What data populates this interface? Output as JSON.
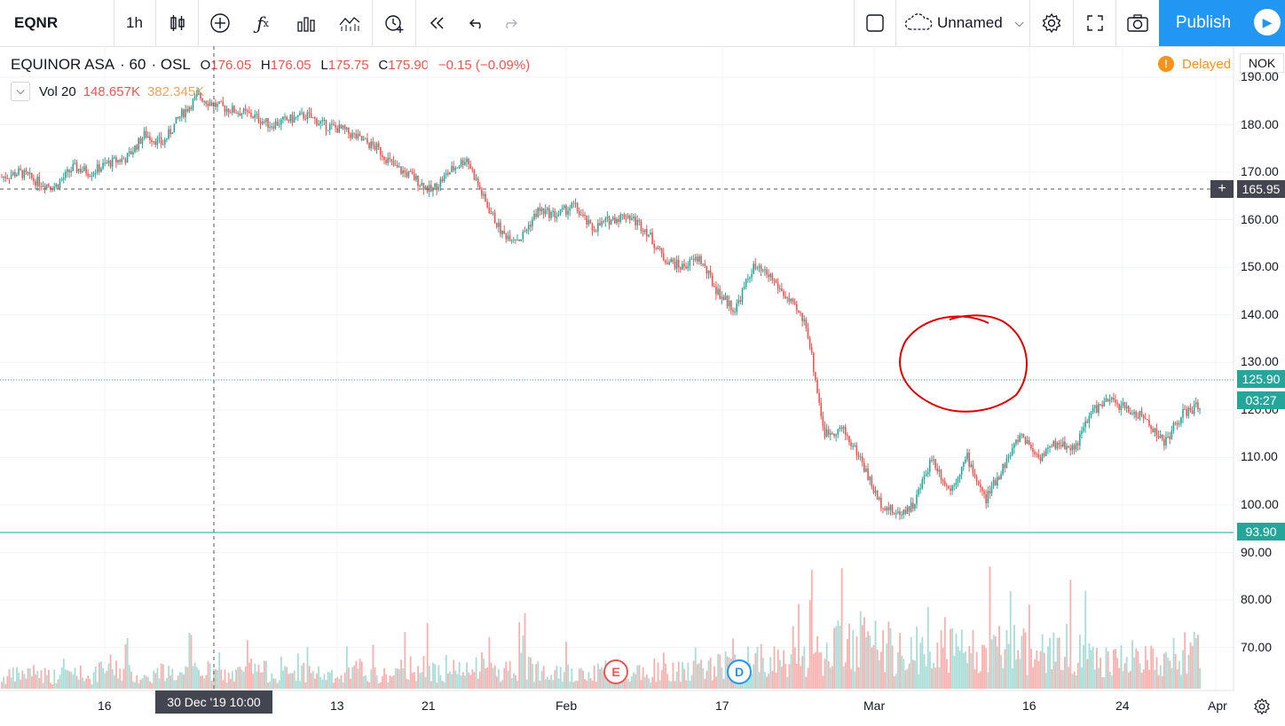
{
  "toolbar": {
    "symbol": "EQNR",
    "interval": "1h",
    "layout_name": "Unnamed",
    "publish_label": "Publish",
    "icons": [
      "candles-icon",
      "add-indicator-icon",
      "fx-icon",
      "bar-chart-icon",
      "compare-icon",
      "alert-icon",
      "replay-icon",
      "undo-icon",
      "redo-icon",
      "fullscreen-square-icon",
      "cloud-icon",
      "chevron-down-icon",
      "settings-gear-icon",
      "expand-icon",
      "camera-icon",
      "play-icon"
    ]
  },
  "legend": {
    "name": "EQUINOR ASA",
    "interval": "60",
    "exchange": "OSL",
    "open_label": "O",
    "open": "176.05",
    "high_label": "H",
    "high": "176.05",
    "low_label": "L",
    "low": "175.75",
    "close_label": "C",
    "close": "175.90",
    "change": "−0.15 (−0.09%)"
  },
  "volume": {
    "name": "Vol 20",
    "value1": "148.657K",
    "value2": "382.345K"
  },
  "status": {
    "delayed": "Delayed",
    "currency": "NOK"
  },
  "price_axis": {
    "labels": [
      "190.00",
      "180.00",
      "170.00",
      "160.00",
      "150.00",
      "140.00",
      "130.00",
      "120.00",
      "110.00",
      "100.00",
      "90.00",
      "80.00",
      "70.00"
    ]
  },
  "price_tags": {
    "crosshair": "165.95",
    "last": "125.90",
    "countdown": "03:27",
    "line": "93.90"
  },
  "time_axis": {
    "labels": [
      "16",
      "13",
      "21",
      "Feb",
      "17",
      "Mar",
      "16",
      "24",
      "Apr"
    ],
    "crosshair": "30 Dec '19   10:00"
  },
  "markers": {
    "earnings": "E",
    "dividend": "D"
  },
  "colors": {
    "up": "#26a69a",
    "down": "#ef5350",
    "up_vol": "#a8ddd7",
    "down_vol": "#f7b0ae",
    "accent": "#2196f3",
    "annotation": "#e00000"
  },
  "chart_data": {
    "type": "candlestick",
    "symbol": "EQUINOR ASA",
    "interval": "60",
    "currency": "NOK",
    "ylim": [
      62,
      192
    ],
    "x_ticks": [
      "16",
      "13",
      "21",
      "Feb",
      "17",
      "Mar",
      "16",
      "24",
      "Apr"
    ],
    "close_path": [
      169,
      170,
      168,
      167,
      171,
      170,
      172,
      173,
      178,
      176,
      182,
      186,
      184,
      183,
      182,
      180,
      181,
      182,
      180,
      179,
      177,
      175,
      171,
      169,
      166,
      170,
      173,
      164,
      157,
      156,
      162,
      161,
      163,
      158,
      160,
      161,
      158,
      152,
      150,
      152,
      145,
      141,
      150,
      148,
      143,
      138,
      115,
      116,
      110,
      101,
      98,
      100,
      110,
      103,
      110,
      101,
      108,
      115,
      110,
      113,
      112,
      120,
      122,
      120,
      118,
      113,
      119,
      121
    ],
    "volume_path": [
      13,
      18,
      20,
      15,
      22,
      14,
      28,
      20,
      13,
      22,
      16,
      25,
      18,
      16,
      26,
      20,
      18,
      22,
      17,
      12,
      25,
      15,
      18,
      30,
      22,
      24,
      20,
      28,
      22,
      28,
      25,
      30,
      15,
      18,
      25,
      22,
      20,
      28,
      26,
      22,
      28,
      40,
      30,
      44,
      32,
      42,
      40,
      58,
      62,
      50,
      45,
      48,
      65,
      52,
      46,
      43,
      55,
      50,
      48,
      45,
      44,
      40,
      38,
      36,
      40,
      38,
      45,
      42
    ]
  }
}
